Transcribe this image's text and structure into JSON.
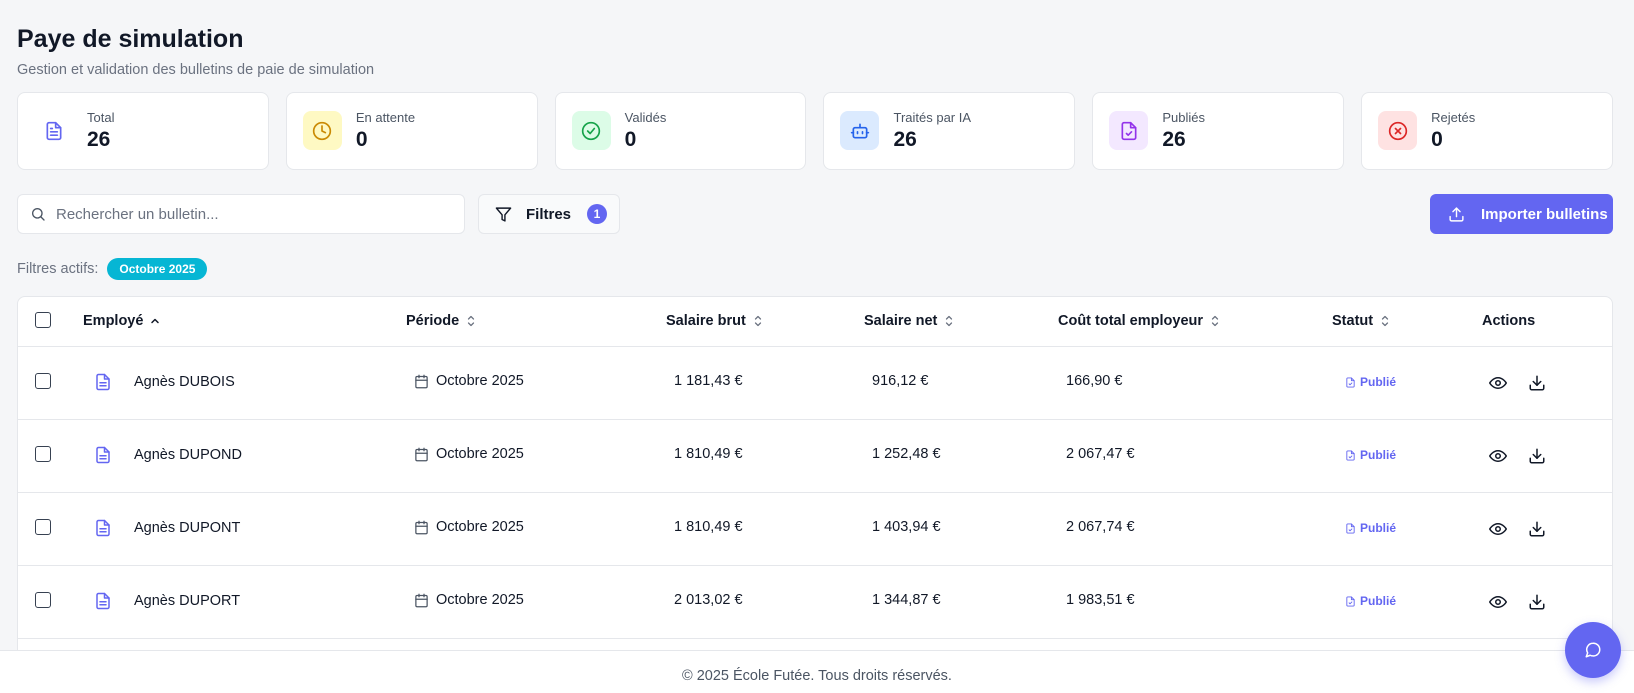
{
  "header": {
    "title": "Paye de simulation",
    "subtitle": "Gestion et validation des bulletins de paie de simulation"
  },
  "stats": [
    {
      "label": "Total",
      "value": "26",
      "icon": "document-icon",
      "color": "#6366f1",
      "bg": "#ffffff"
    },
    {
      "label": "En attente",
      "value": "0",
      "icon": "clock-icon",
      "color": "#ca8a04",
      "bg": "#fef9c3"
    },
    {
      "label": "Validés",
      "value": "0",
      "icon": "check-circle-icon",
      "color": "#16a34a",
      "bg": "#dcfce7"
    },
    {
      "label": "Traités par IA",
      "value": "26",
      "icon": "robot-icon",
      "color": "#2563eb",
      "bg": "#dbeafe"
    },
    {
      "label": "Publiés",
      "value": "26",
      "icon": "file-check-icon",
      "color": "#9333ea",
      "bg": "#f3e8ff"
    },
    {
      "label": "Rejetés",
      "value": "0",
      "icon": "x-circle-icon",
      "color": "#dc2626",
      "bg": "#fee2e2"
    }
  ],
  "toolbar": {
    "search_placeholder": "Rechercher un bulletin...",
    "filters_label": "Filtres",
    "filters_count": "1",
    "import_label": "Importer bulletins"
  },
  "active_filters": {
    "label": "Filtres actifs:",
    "chips": [
      "Octobre 2025"
    ]
  },
  "table": {
    "columns": {
      "employee": "Employé",
      "period": "Période",
      "gross": "Salaire brut",
      "net": "Salaire net",
      "employer_cost": "Coût total employeur",
      "status": "Statut",
      "actions": "Actions"
    },
    "rows": [
      {
        "employee": "Agnès DUBOIS",
        "period": "Octobre 2025",
        "gross": "1 181,43 €",
        "net": "916,12 €",
        "employer_cost": "166,90 €",
        "status": "Publié"
      },
      {
        "employee": "Agnès DUPOND",
        "period": "Octobre 2025",
        "gross": "1 810,49 €",
        "net": "1 252,48 €",
        "employer_cost": "2 067,47 €",
        "status": "Publié"
      },
      {
        "employee": "Agnès DUPONT",
        "period": "Octobre 2025",
        "gross": "1 810,49 €",
        "net": "1 403,94 €",
        "employer_cost": "2 067,74 €",
        "status": "Publié"
      },
      {
        "employee": "Agnès DUPORT",
        "period": "Octobre 2025",
        "gross": "2 013,02 €",
        "net": "1 344,87 €",
        "employer_cost": "1 983,51 €",
        "status": "Publié"
      }
    ]
  },
  "footer": {
    "text": "© 2025 École Futée. Tous droits réservés."
  },
  "colors": {
    "accent": "#6366f1",
    "chip": "#06b6d4"
  }
}
